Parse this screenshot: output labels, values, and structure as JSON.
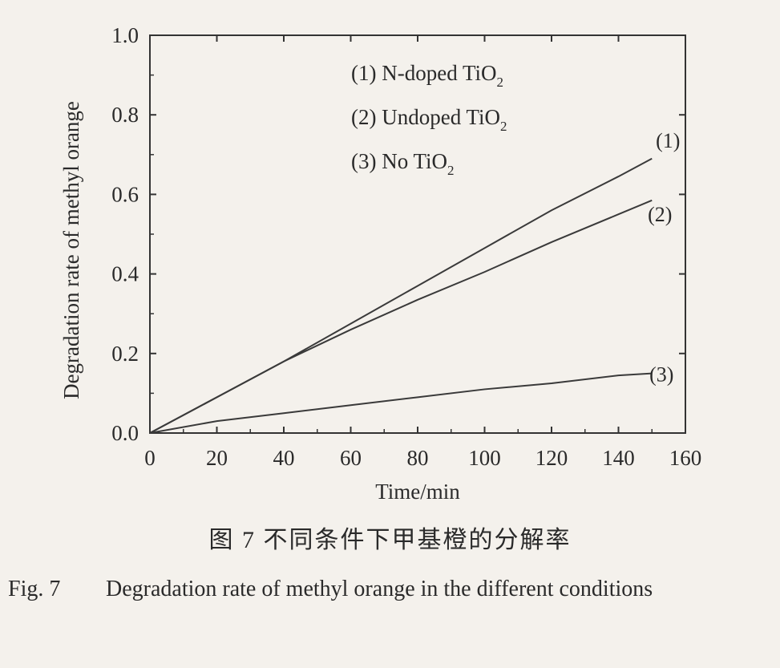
{
  "chart_data": {
    "type": "line",
    "xlabel": "Time/min",
    "ylabel": "Degradation rate of methyl orange",
    "xlim": [
      0,
      160
    ],
    "ylim": [
      0,
      1.0
    ],
    "xticks": [
      "0",
      "20",
      "40",
      "60",
      "80",
      "100",
      "120",
      "140",
      "160"
    ],
    "yticks": [
      "0.0",
      "0.2",
      "0.4",
      "0.6",
      "0.8",
      "1.0"
    ],
    "grid": false,
    "legend_position": "top-center",
    "series": [
      {
        "name": "(1) N-doped TiO₂",
        "label": "(1)",
        "x": [
          0,
          20,
          40,
          60,
          80,
          100,
          120,
          140,
          150
        ],
        "y": [
          0,
          0.09,
          0.18,
          0.275,
          0.37,
          0.465,
          0.56,
          0.645,
          0.69
        ]
      },
      {
        "name": "(2) Undoped TiO₂",
        "label": "(2)",
        "x": [
          0,
          20,
          40,
          60,
          80,
          100,
          120,
          140,
          150
        ],
        "y": [
          0,
          0.09,
          0.18,
          0.26,
          0.335,
          0.405,
          0.48,
          0.55,
          0.585
        ]
      },
      {
        "name": "(3) No TiO₂",
        "label": "(3)",
        "x": [
          0,
          20,
          40,
          60,
          80,
          100,
          120,
          140,
          150
        ],
        "y": [
          0,
          0.03,
          0.05,
          0.07,
          0.09,
          0.11,
          0.125,
          0.145,
          0.15
        ]
      }
    ]
  },
  "caption": {
    "cn": "图 7    不同条件下甲基橙的分解率",
    "en_label": "Fig. 7",
    "en_text": "Degradation rate of methyl orange in the different conditions"
  }
}
